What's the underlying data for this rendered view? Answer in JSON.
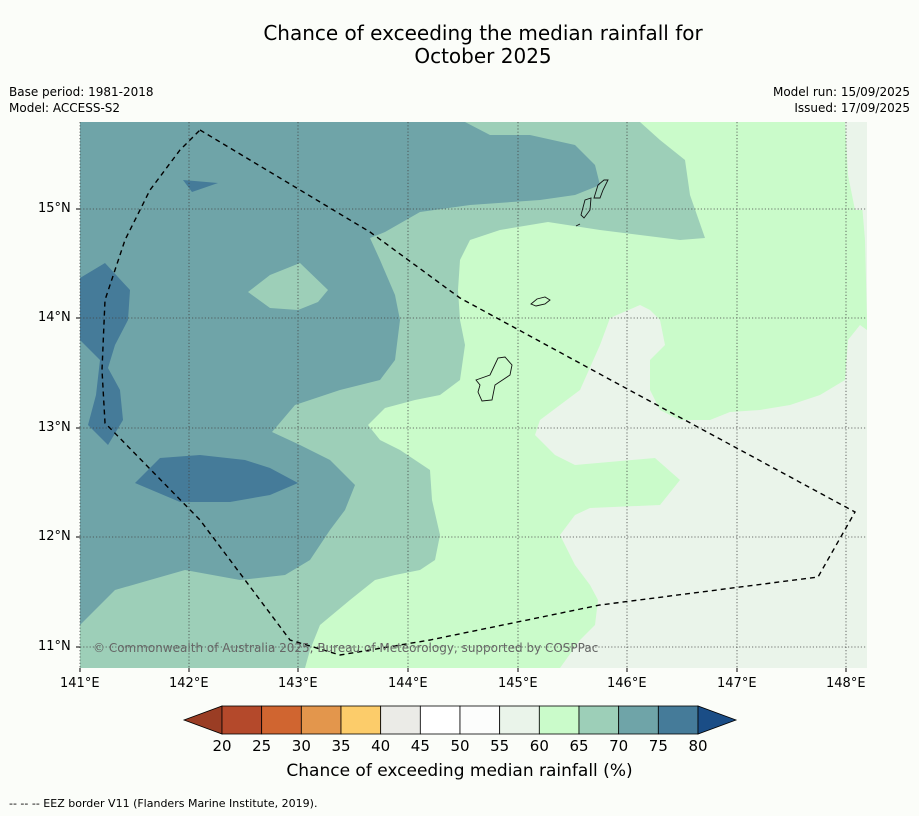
{
  "title_line1": "Chance of exceeding the median rainfall for",
  "title_line2": "October 2025",
  "base_period": "Base period: 1981-2018",
  "model": "Model: ACCESS-S2",
  "model_run": "Model run: 15/09/2025",
  "issued": "Issued: 17/09/2025",
  "copyright": "© Commonwealth of Australia 2025, Bureau of Meteorology, supported by COSPPac",
  "footer": "--  --  -- EEZ border V11 (Flanders Marine Institute, 2019).",
  "colorbar": {
    "label": "Chance of exceeding median rainfall (%)",
    "ticks": [
      "20",
      "25",
      "30",
      "35",
      "40",
      "45",
      "50",
      "55",
      "60",
      "65",
      "70",
      "75",
      "80"
    ],
    "colors": [
      "#b4492b",
      "#d06530",
      "#e3964c",
      "#fccc6a",
      "#ebebe7",
      "#ffffff",
      "#fcfdfc",
      "#eaf4ea",
      "#cafbca",
      "#9dcfb8",
      "#6fa4a8",
      "#457b99"
    ],
    "below_color": "#9a3d24",
    "above_color": "#1a4d86"
  },
  "map": {
    "x_ticks": [
      "141°E",
      "142°E",
      "143°E",
      "144°E",
      "145°E",
      "146°E",
      "147°E",
      "148°E"
    ],
    "y_ticks": [
      "15°N",
      "14°N",
      "13°N",
      "12°N",
      "11°N"
    ],
    "lon_range": [
      141,
      148.2
    ],
    "lat_range": [
      10.8,
      15.8
    ]
  }
}
